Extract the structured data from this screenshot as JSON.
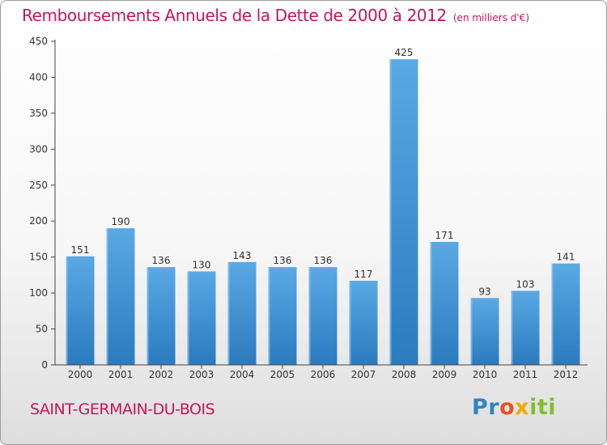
{
  "header": {
    "title": "Remboursements Annuels de la Dette de 2000 à 2012",
    "unit": "(en milliers d'€)"
  },
  "footer": {
    "city": "SAINT-GERMAIN-DU-BOIS",
    "logo": "Proxiti"
  },
  "colors": {
    "accent": "#c2185b",
    "bar_top": "#5aa9e4",
    "bar_bottom": "#2a7bbf"
  },
  "chart_data": {
    "type": "bar",
    "title": "Remboursements Annuels de la Dette de 2000 à 2012",
    "subtitle": "(en milliers d'€)",
    "xlabel": "",
    "ylabel": "",
    "categories": [
      "2000",
      "2001",
      "2002",
      "2003",
      "2004",
      "2005",
      "2006",
      "2007",
      "2008",
      "2009",
      "2010",
      "2011",
      "2012"
    ],
    "values": [
      151,
      190,
      136,
      130,
      143,
      136,
      136,
      117,
      425,
      171,
      93,
      103,
      141
    ],
    "ylim": [
      0,
      450
    ],
    "yticks": [
      0,
      50,
      100,
      150,
      200,
      250,
      300,
      350,
      400,
      450
    ],
    "grid": false,
    "legend": "none"
  }
}
